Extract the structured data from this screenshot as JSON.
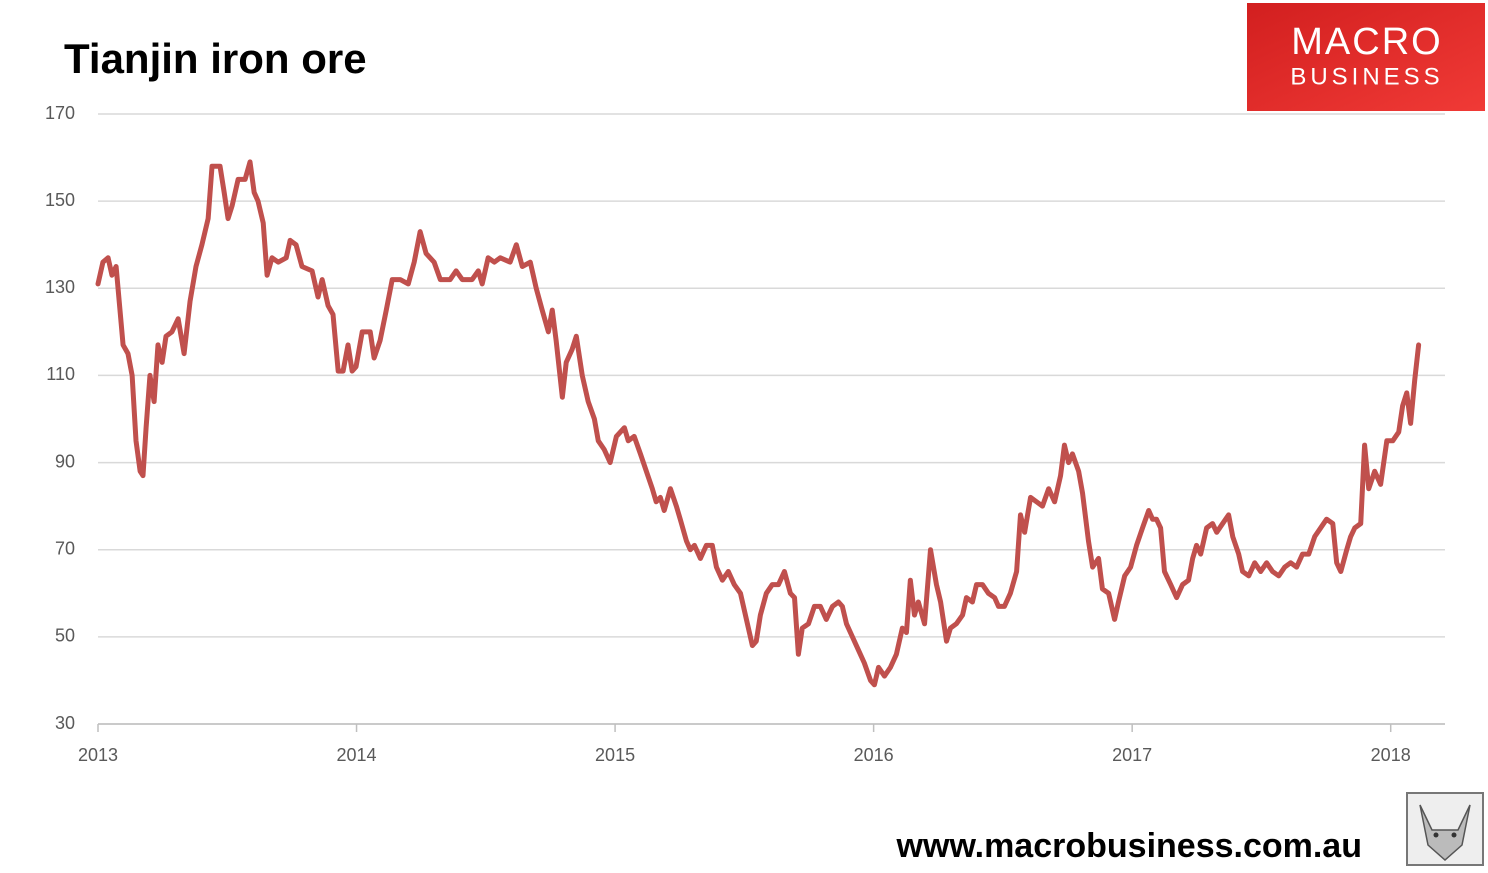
{
  "chart_data": {
    "type": "line",
    "title": "Tianjin iron ore",
    "x": [
      2013.0,
      2013.019,
      2013.039,
      2013.054,
      2013.07,
      2013.085,
      2013.097,
      2013.116,
      2013.132,
      2013.147,
      2013.163,
      2013.174,
      2013.186,
      2013.201,
      2013.217,
      2013.232,
      2013.248,
      2013.263,
      2013.286,
      2013.31,
      2013.333,
      2013.356,
      2013.379,
      2013.402,
      2013.426,
      2013.441,
      2013.472,
      2013.488,
      2013.503,
      2013.519,
      2013.542,
      2013.569,
      2013.588,
      2013.604,
      2013.619,
      2013.639,
      2013.654,
      2013.673,
      2013.697,
      2013.728,
      2013.743,
      2013.766,
      2013.789,
      2013.828,
      2013.851,
      2013.867,
      2013.89,
      2013.909,
      2013.929,
      2013.948,
      2013.967,
      2013.983,
      2013.998,
      2014.022,
      2014.053,
      2014.068,
      2014.091,
      2014.115,
      2014.138,
      2014.169,
      2014.2,
      2014.223,
      2014.246,
      2014.269,
      2014.3,
      2014.324,
      2014.362,
      2014.385,
      2014.409,
      2014.447,
      2014.471,
      2014.486,
      2014.509,
      2014.533,
      2014.556,
      2014.594,
      2014.618,
      2014.641,
      2014.672,
      2014.695,
      2014.718,
      2014.742,
      2014.757,
      2014.772,
      2014.796,
      2014.811,
      2014.834,
      2014.85,
      2014.873,
      2014.896,
      2014.92,
      2014.935,
      2014.958,
      2014.981,
      2015.005,
      2015.036,
      2015.051,
      2015.074,
      2015.098,
      2015.121,
      2015.144,
      2015.159,
      2015.175,
      2015.19,
      2015.214,
      2015.237,
      2015.252,
      2015.276,
      2015.291,
      2015.307,
      2015.33,
      2015.353,
      2015.376,
      2015.392,
      2015.415,
      2015.438,
      2015.461,
      2015.485,
      2015.508,
      2015.531,
      2015.546,
      2015.562,
      2015.585,
      2015.608,
      2015.632,
      2015.655,
      2015.678,
      2015.694,
      2015.709,
      2015.724,
      2015.748,
      2015.771,
      2015.794,
      2015.817,
      2015.841,
      2015.864,
      2015.879,
      2015.895,
      2015.918,
      2015.941,
      2015.964,
      2015.988,
      2016.003,
      2016.019,
      2016.042,
      2016.065,
      2016.088,
      2016.111,
      2016.127,
      2016.142,
      2016.158,
      2016.173,
      2016.197,
      2016.22,
      2016.243,
      2016.259,
      2016.282,
      2016.297,
      2016.32,
      2016.344,
      2016.359,
      2016.382,
      2016.398,
      2016.421,
      2016.444,
      2016.468,
      2016.483,
      2016.506,
      2016.529,
      2016.553,
      2016.568,
      2016.584,
      2016.607,
      2016.63,
      2016.653,
      2016.677,
      2016.7,
      2016.723,
      2016.738,
      2016.754,
      2016.769,
      2016.793,
      2016.808,
      2016.831,
      2016.847,
      2016.87,
      2016.885,
      2016.909,
      2016.932,
      2016.947,
      2016.971,
      2016.994,
      2017.017,
      2017.04,
      2017.064,
      2017.079,
      2017.094,
      2017.11,
      2017.125,
      2017.149,
      2017.172,
      2017.195,
      2017.218,
      2017.234,
      2017.249,
      2017.265,
      2017.288,
      2017.311,
      2017.327,
      2017.35,
      2017.373,
      2017.389,
      2017.412,
      2017.427,
      2017.451,
      2017.474,
      2017.497,
      2017.52,
      2017.543,
      2017.567,
      2017.59,
      2017.613,
      2017.636,
      2017.659,
      2017.683,
      2017.706,
      2017.729,
      2017.752,
      2017.776,
      2017.791,
      2017.807,
      2017.83,
      2017.845,
      2017.861,
      2017.884,
      2017.899,
      2017.915,
      2017.938,
      2017.961,
      2017.985,
      2018.008,
      2018.031,
      2018.046,
      2018.062,
      2018.077,
      2018.093,
      2018.108
    ],
    "values": [
      131,
      136,
      137,
      133,
      135,
      125,
      117,
      115,
      110,
      95,
      88,
      87,
      98,
      110,
      104,
      117,
      113,
      119,
      120,
      123,
      115,
      127,
      135,
      140,
      146,
      158,
      158,
      152,
      146,
      149,
      155,
      155,
      159,
      152,
      150,
      145,
      133,
      137,
      136,
      137,
      141,
      140,
      135,
      134,
      128,
      132,
      126,
      124,
      111,
      111,
      117,
      111,
      112,
      120,
      120,
      114,
      118,
      125,
      132,
      132,
      131,
      136,
      143,
      138,
      136,
      132,
      132,
      134,
      132,
      132,
      134,
      131,
      137,
      136,
      137,
      136,
      140,
      135,
      136,
      130,
      125,
      120,
      125,
      118,
      105,
      113,
      116,
      119,
      110,
      104,
      100,
      95,
      93,
      90,
      96,
      98,
      95,
      96,
      92,
      88,
      84,
      81,
      82,
      79,
      84,
      80,
      77,
      72,
      70,
      71,
      68,
      71,
      71,
      66,
      63,
      65,
      62,
      60,
      54,
      48,
      49,
      55,
      60,
      62,
      62,
      65,
      60,
      59,
      46,
      52,
      53,
      57,
      57,
      54,
      57,
      58,
      57,
      53,
      50,
      47,
      44,
      40,
      39,
      43,
      41,
      43,
      46,
      52,
      51,
      63,
      55,
      58,
      53,
      70,
      62,
      58,
      49,
      52,
      53,
      55,
      59,
      58,
      62,
      62,
      60,
      59,
      57,
      57,
      60,
      65,
      78,
      74,
      82,
      81,
      80,
      84,
      81,
      87,
      94,
      90,
      92,
      88,
      83,
      72,
      66,
      68,
      61,
      60,
      54,
      58,
      64,
      66,
      71,
      75,
      79,
      77,
      77,
      75,
      65,
      62,
      59,
      62,
      63,
      68,
      71,
      69,
      75,
      76,
      74,
      76,
      78,
      73,
      69,
      65,
      64,
      67,
      65,
      67,
      65,
      64,
      66,
      67,
      66,
      69,
      69,
      73,
      75,
      77,
      76,
      67,
      65,
      70,
      73,
      75,
      76,
      94,
      84,
      88,
      85,
      95,
      95,
      97,
      103,
      106,
      99,
      109,
      117
    ],
    "color": "#c0504d",
    "xlim": [
      2013,
      2018.21
    ],
    "xticks": [
      2013,
      2014,
      2015,
      2016,
      2017,
      2018
    ],
    "ylim": [
      30,
      170
    ],
    "yticks": [
      30,
      50,
      70,
      90,
      110,
      130,
      150,
      170
    ],
    "grid": true
  },
  "logo": {
    "line1": "MACRO",
    "line2": "BUSINESS"
  },
  "footer": "www.macrobusiness.com.au"
}
